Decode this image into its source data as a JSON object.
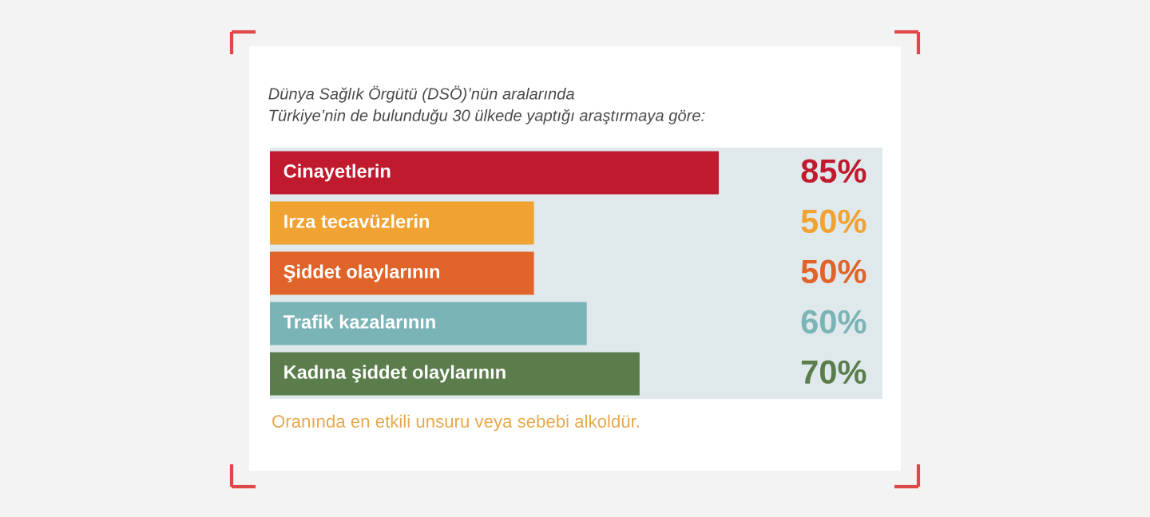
{
  "chart_data": {
    "type": "bar",
    "orientation": "horizontal",
    "title": "Dünya Sağlık Örgütü (DSÖ)’nün aralarında\nTürkiye’nin de bulunduğu 30 ülkede yaptığı araştırmaya göre:",
    "categories": [
      "Cinayetlerin",
      "Irza tecavüzlerin",
      "Şiddet olaylarının",
      "Trafik kazalarının",
      "Kadına şiddet olaylarının"
    ],
    "values": [
      85,
      50,
      50,
      60,
      70
    ],
    "colors": [
      "#c01a2e",
      "#f0a232",
      "#e0642a",
      "#7bb4b6",
      "#5b7d4b"
    ],
    "value_labels": [
      "85%",
      "50%",
      "50%",
      "60%",
      "70%"
    ],
    "xlim": [
      0,
      116
    ],
    "tick_labels": "y",
    "annotations": [
      "Oranında en etkili unsuru veya sebebi alkoldür."
    ]
  }
}
